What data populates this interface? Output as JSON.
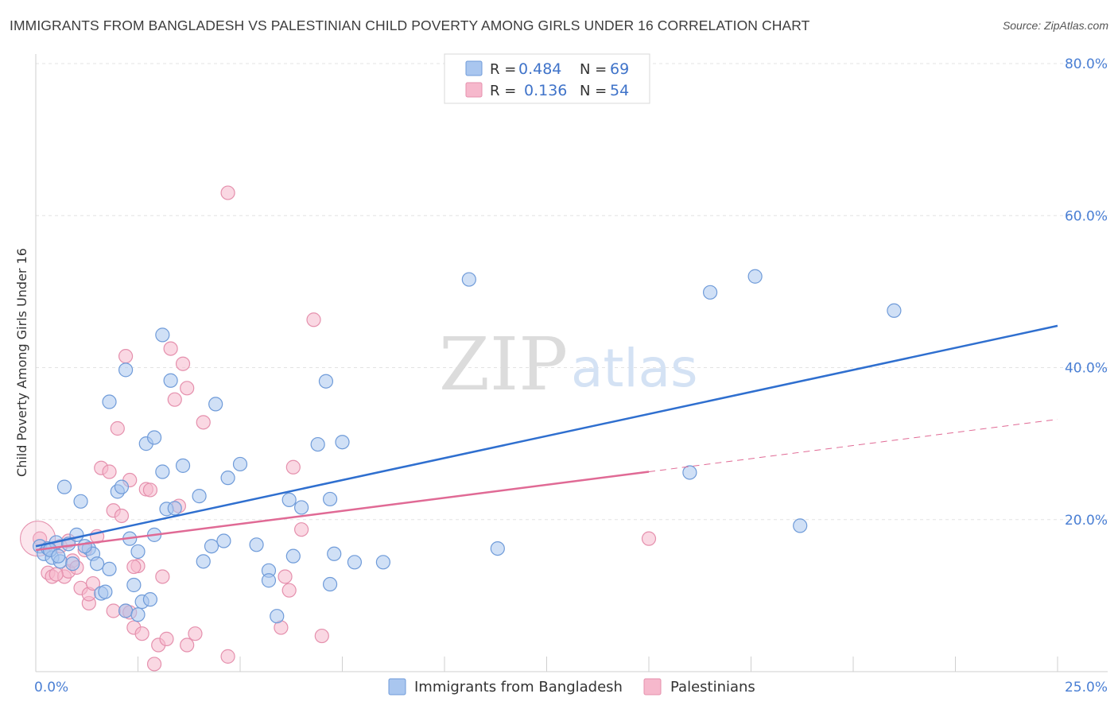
{
  "title": "IMMIGRANTS FROM BANGLADESH VS PALESTINIAN CHILD POVERTY AMONG GIRLS UNDER 16 CORRELATION CHART",
  "source": "Source: ZipAtlas.com",
  "watermark": {
    "zip": "ZIP",
    "atlas": "atlas"
  },
  "colors": {
    "blue_fill": "#a9c6ef",
    "blue_stroke": "#6f9bd9",
    "blue_line": "#2f6fcf",
    "pink_fill": "#f6b8cc",
    "pink_stroke": "#e590ad",
    "pink_line": "#e06a95",
    "axis_label": "#4a7fd4",
    "grid": "#e3e3e3"
  },
  "legend": [
    {
      "r_label": "R =",
      "r_value": "0.484",
      "n_label": "N =",
      "n_value": "69",
      "color": "blue"
    },
    {
      "r_label": "R =",
      "r_value": "0.136",
      "n_label": "N =",
      "n_value": "54",
      "color": "pink"
    }
  ],
  "bottom_legend": [
    {
      "label": "Immigrants from Bangladesh",
      "color": "blue"
    },
    {
      "label": "Palestinians",
      "color": "pink"
    }
  ],
  "chart_data": {
    "type": "scatter",
    "title": "IMMIGRANTS FROM BANGLADESH VS PALESTINIAN CHILD POVERTY AMONG GIRLS UNDER 16 CORRELATION CHART",
    "xlabel": "",
    "ylabel": "Child Poverty Among Girls Under 16",
    "xlim": [
      0,
      25
    ],
    "ylim": [
      0,
      80
    ],
    "x_ticks": [
      0,
      25
    ],
    "x_tick_labels": [
      "0.0%",
      "25.0%"
    ],
    "y_ticks": [
      20,
      40,
      60,
      80
    ],
    "y_tick_labels": [
      "20.0%",
      "40.0%",
      "60.0%",
      "80.0%"
    ],
    "grid": true,
    "legend_position": "top-center",
    "series": [
      {
        "name": "Immigrants from Bangladesh",
        "color": "blue",
        "trend": {
          "x": [
            0,
            25
          ],
          "y": [
            16.5,
            45.5
          ],
          "style": "solid"
        },
        "points": [
          [
            0.1,
            16.5
          ],
          [
            0.2,
            15.5
          ],
          [
            0.3,
            16.2
          ],
          [
            0.4,
            15.0
          ],
          [
            0.5,
            17.0
          ],
          [
            0.6,
            14.5
          ],
          [
            0.7,
            24.3
          ],
          [
            0.8,
            16.8
          ],
          [
            0.9,
            14.2
          ],
          [
            1.0,
            18.0
          ],
          [
            1.1,
            22.4
          ],
          [
            1.3,
            16.2
          ],
          [
            1.4,
            15.5
          ],
          [
            1.5,
            14.2
          ],
          [
            1.6,
            10.3
          ],
          [
            1.7,
            10.5
          ],
          [
            1.8,
            13.5
          ],
          [
            1.8,
            35.5
          ],
          [
            2.0,
            23.7
          ],
          [
            2.1,
            24.3
          ],
          [
            2.2,
            8.0
          ],
          [
            2.2,
            39.7
          ],
          [
            2.3,
            17.5
          ],
          [
            2.4,
            11.4
          ],
          [
            2.5,
            7.5
          ],
          [
            2.5,
            15.8
          ],
          [
            2.6,
            9.2
          ],
          [
            2.7,
            30.0
          ],
          [
            2.8,
            9.5
          ],
          [
            2.9,
            30.8
          ],
          [
            2.9,
            18.0
          ],
          [
            3.1,
            44.3
          ],
          [
            3.1,
            26.3
          ],
          [
            3.2,
            21.4
          ],
          [
            3.3,
            38.3
          ],
          [
            3.4,
            21.5
          ],
          [
            3.6,
            27.1
          ],
          [
            4.0,
            23.1
          ],
          [
            4.1,
            14.5
          ],
          [
            4.3,
            16.5
          ],
          [
            4.4,
            35.2
          ],
          [
            4.6,
            17.2
          ],
          [
            4.7,
            25.5
          ],
          [
            5.0,
            27.3
          ],
          [
            5.4,
            16.7
          ],
          [
            5.7,
            13.3
          ],
          [
            5.7,
            12.0
          ],
          [
            5.9,
            7.3
          ],
          [
            6.2,
            22.6
          ],
          [
            6.3,
            15.2
          ],
          [
            6.5,
            21.6
          ],
          [
            6.9,
            29.9
          ],
          [
            7.1,
            38.2
          ],
          [
            7.2,
            22.7
          ],
          [
            7.2,
            11.5
          ],
          [
            7.3,
            15.5
          ],
          [
            7.5,
            30.2
          ],
          [
            7.8,
            14.4
          ],
          [
            8.5,
            14.4
          ],
          [
            10.6,
            51.6
          ],
          [
            11.3,
            16.2
          ],
          [
            16.0,
            26.2
          ],
          [
            16.5,
            49.9
          ],
          [
            17.6,
            52.0
          ],
          [
            18.7,
            19.2
          ],
          [
            21.0,
            47.5
          ],
          [
            0.35,
            16.0
          ],
          [
            0.55,
            15.2
          ],
          [
            1.2,
            16.5
          ]
        ]
      },
      {
        "name": "Palestinians",
        "color": "pink",
        "trend": {
          "x": [
            0,
            15
          ],
          "y": [
            16.0,
            26.3
          ],
          "style": "solid",
          "extension": {
            "x": [
              15,
              25
            ],
            "y": [
              26.3,
              33.2
            ],
            "style": "dashed"
          }
        },
        "points": [
          [
            0.1,
            17.5
          ],
          [
            0.3,
            13.0
          ],
          [
            0.4,
            12.5
          ],
          [
            0.6,
            16.5
          ],
          [
            0.7,
            12.5
          ],
          [
            0.8,
            13.2
          ],
          [
            0.8,
            17.2
          ],
          [
            0.9,
            14.6
          ],
          [
            1.0,
            13.7
          ],
          [
            1.1,
            11.0
          ],
          [
            1.2,
            16.0
          ],
          [
            1.3,
            9.0
          ],
          [
            1.3,
            10.2
          ],
          [
            1.4,
            11.6
          ],
          [
            1.5,
            17.8
          ],
          [
            1.6,
            26.8
          ],
          [
            1.8,
            26.3
          ],
          [
            1.9,
            21.2
          ],
          [
            2.0,
            32.0
          ],
          [
            2.1,
            20.5
          ],
          [
            2.2,
            8.0
          ],
          [
            2.2,
            41.5
          ],
          [
            2.3,
            25.2
          ],
          [
            2.3,
            7.8
          ],
          [
            2.4,
            5.8
          ],
          [
            2.5,
            13.9
          ],
          [
            2.6,
            5.0
          ],
          [
            2.7,
            24.0
          ],
          [
            2.8,
            23.9
          ],
          [
            2.9,
            1.0
          ],
          [
            3.0,
            3.5
          ],
          [
            3.1,
            12.5
          ],
          [
            3.2,
            4.3
          ],
          [
            3.3,
            42.5
          ],
          [
            3.4,
            35.8
          ],
          [
            3.5,
            21.8
          ],
          [
            3.6,
            40.5
          ],
          [
            3.7,
            3.5
          ],
          [
            3.7,
            37.3
          ],
          [
            3.9,
            5.0
          ],
          [
            4.1,
            32.8
          ],
          [
            4.7,
            2.0
          ],
          [
            4.7,
            63.0
          ],
          [
            6.0,
            5.8
          ],
          [
            6.1,
            12.5
          ],
          [
            6.2,
            10.7
          ],
          [
            6.3,
            26.9
          ],
          [
            6.5,
            18.7
          ],
          [
            6.8,
            46.3
          ],
          [
            7.0,
            4.7
          ],
          [
            15.0,
            17.5
          ],
          [
            0.5,
            12.8
          ],
          [
            1.9,
            8.0
          ],
          [
            2.4,
            13.8
          ]
        ]
      }
    ]
  }
}
